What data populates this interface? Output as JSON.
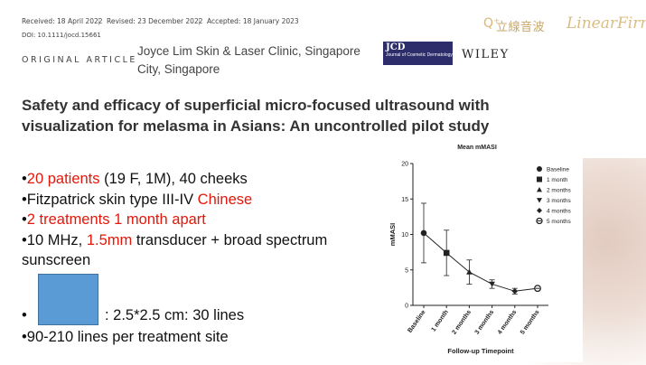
{
  "header": {
    "received": "Received: 18 April 2022",
    "revised": "Revised: 23 December 2022",
    "accepted": "Accepted: 18 January 2023",
    "separator": "|",
    "doi": "DOI: 10.1111/jocd.15661"
  },
  "brand": {
    "mark": "Q⁺",
    "chinese_name": "立線音波",
    "english_name": "LinearFirm"
  },
  "article": {
    "label": "ORIGINAL ARTICLE",
    "affiliation": "Joyce Lim Skin & Laser Clinic, Singapore City, Singapore",
    "journal_logo_abbrev": "JCD",
    "journal_logo_name": "Journal of Cosmetic Dermatology",
    "publisher": "WILEY",
    "title": "Safety and efficacy of superficial micro-focused ultrasound with visualization for melasma in Asians: An uncontrolled pilot study"
  },
  "bullets": {
    "b1_hl": "20 patients",
    "b1_rest": " (19 F, 1M), 40 cheeks",
    "b2_plain": "Fitzpatrick skin type III-IV ",
    "b2_hl": "Chinese",
    "b3_hl": "2 treatments 1 month apart",
    "b4_plain1": "10 MHz, ",
    "b4_hl": "1.5mm",
    "b4_plain2": " transducer + broad spectrum",
    "b4_cont": "sunscreen",
    "b5_text": ": 2.5*2.5 cm: 30 lines",
    "b6_text": "90-210 lines per treatment site",
    "bullet_char": "•"
  },
  "colors": {
    "highlight": "#e3170a",
    "square_fill": "#5b9bd5",
    "brand_gold": "#d9bd86",
    "journal_navy": "#2d2d6b"
  },
  "chart_data": {
    "type": "line",
    "title": "Mean mMASI",
    "xlabel": "Follow-up Timepoint",
    "ylabel": "mMASI",
    "ylim": [
      0,
      20
    ],
    "yticks": [
      "0",
      "5",
      "10",
      "15",
      "20"
    ],
    "categories": [
      "Baseline",
      "1 month",
      "2 months",
      "3 months",
      "4 months",
      "5 months"
    ],
    "values": [
      10.2,
      7.4,
      4.7,
      3.0,
      2.0,
      2.4
    ],
    "error_low": [
      6.0,
      4.2,
      3.0,
      2.4,
      1.6,
      2.2
    ],
    "error_high": [
      14.4,
      10.6,
      6.4,
      3.6,
      2.4,
      2.6
    ],
    "legend_position": "right",
    "legend": [
      {
        "label": "Baseline",
        "marker": "circle"
      },
      {
        "label": "1 month",
        "marker": "square"
      },
      {
        "label": "2 months",
        "marker": "triangle-up"
      },
      {
        "label": "3 months",
        "marker": "triangle-down"
      },
      {
        "label": "4 months",
        "marker": "diamond"
      },
      {
        "label": "5 months",
        "marker": "circle-cross"
      }
    ]
  }
}
